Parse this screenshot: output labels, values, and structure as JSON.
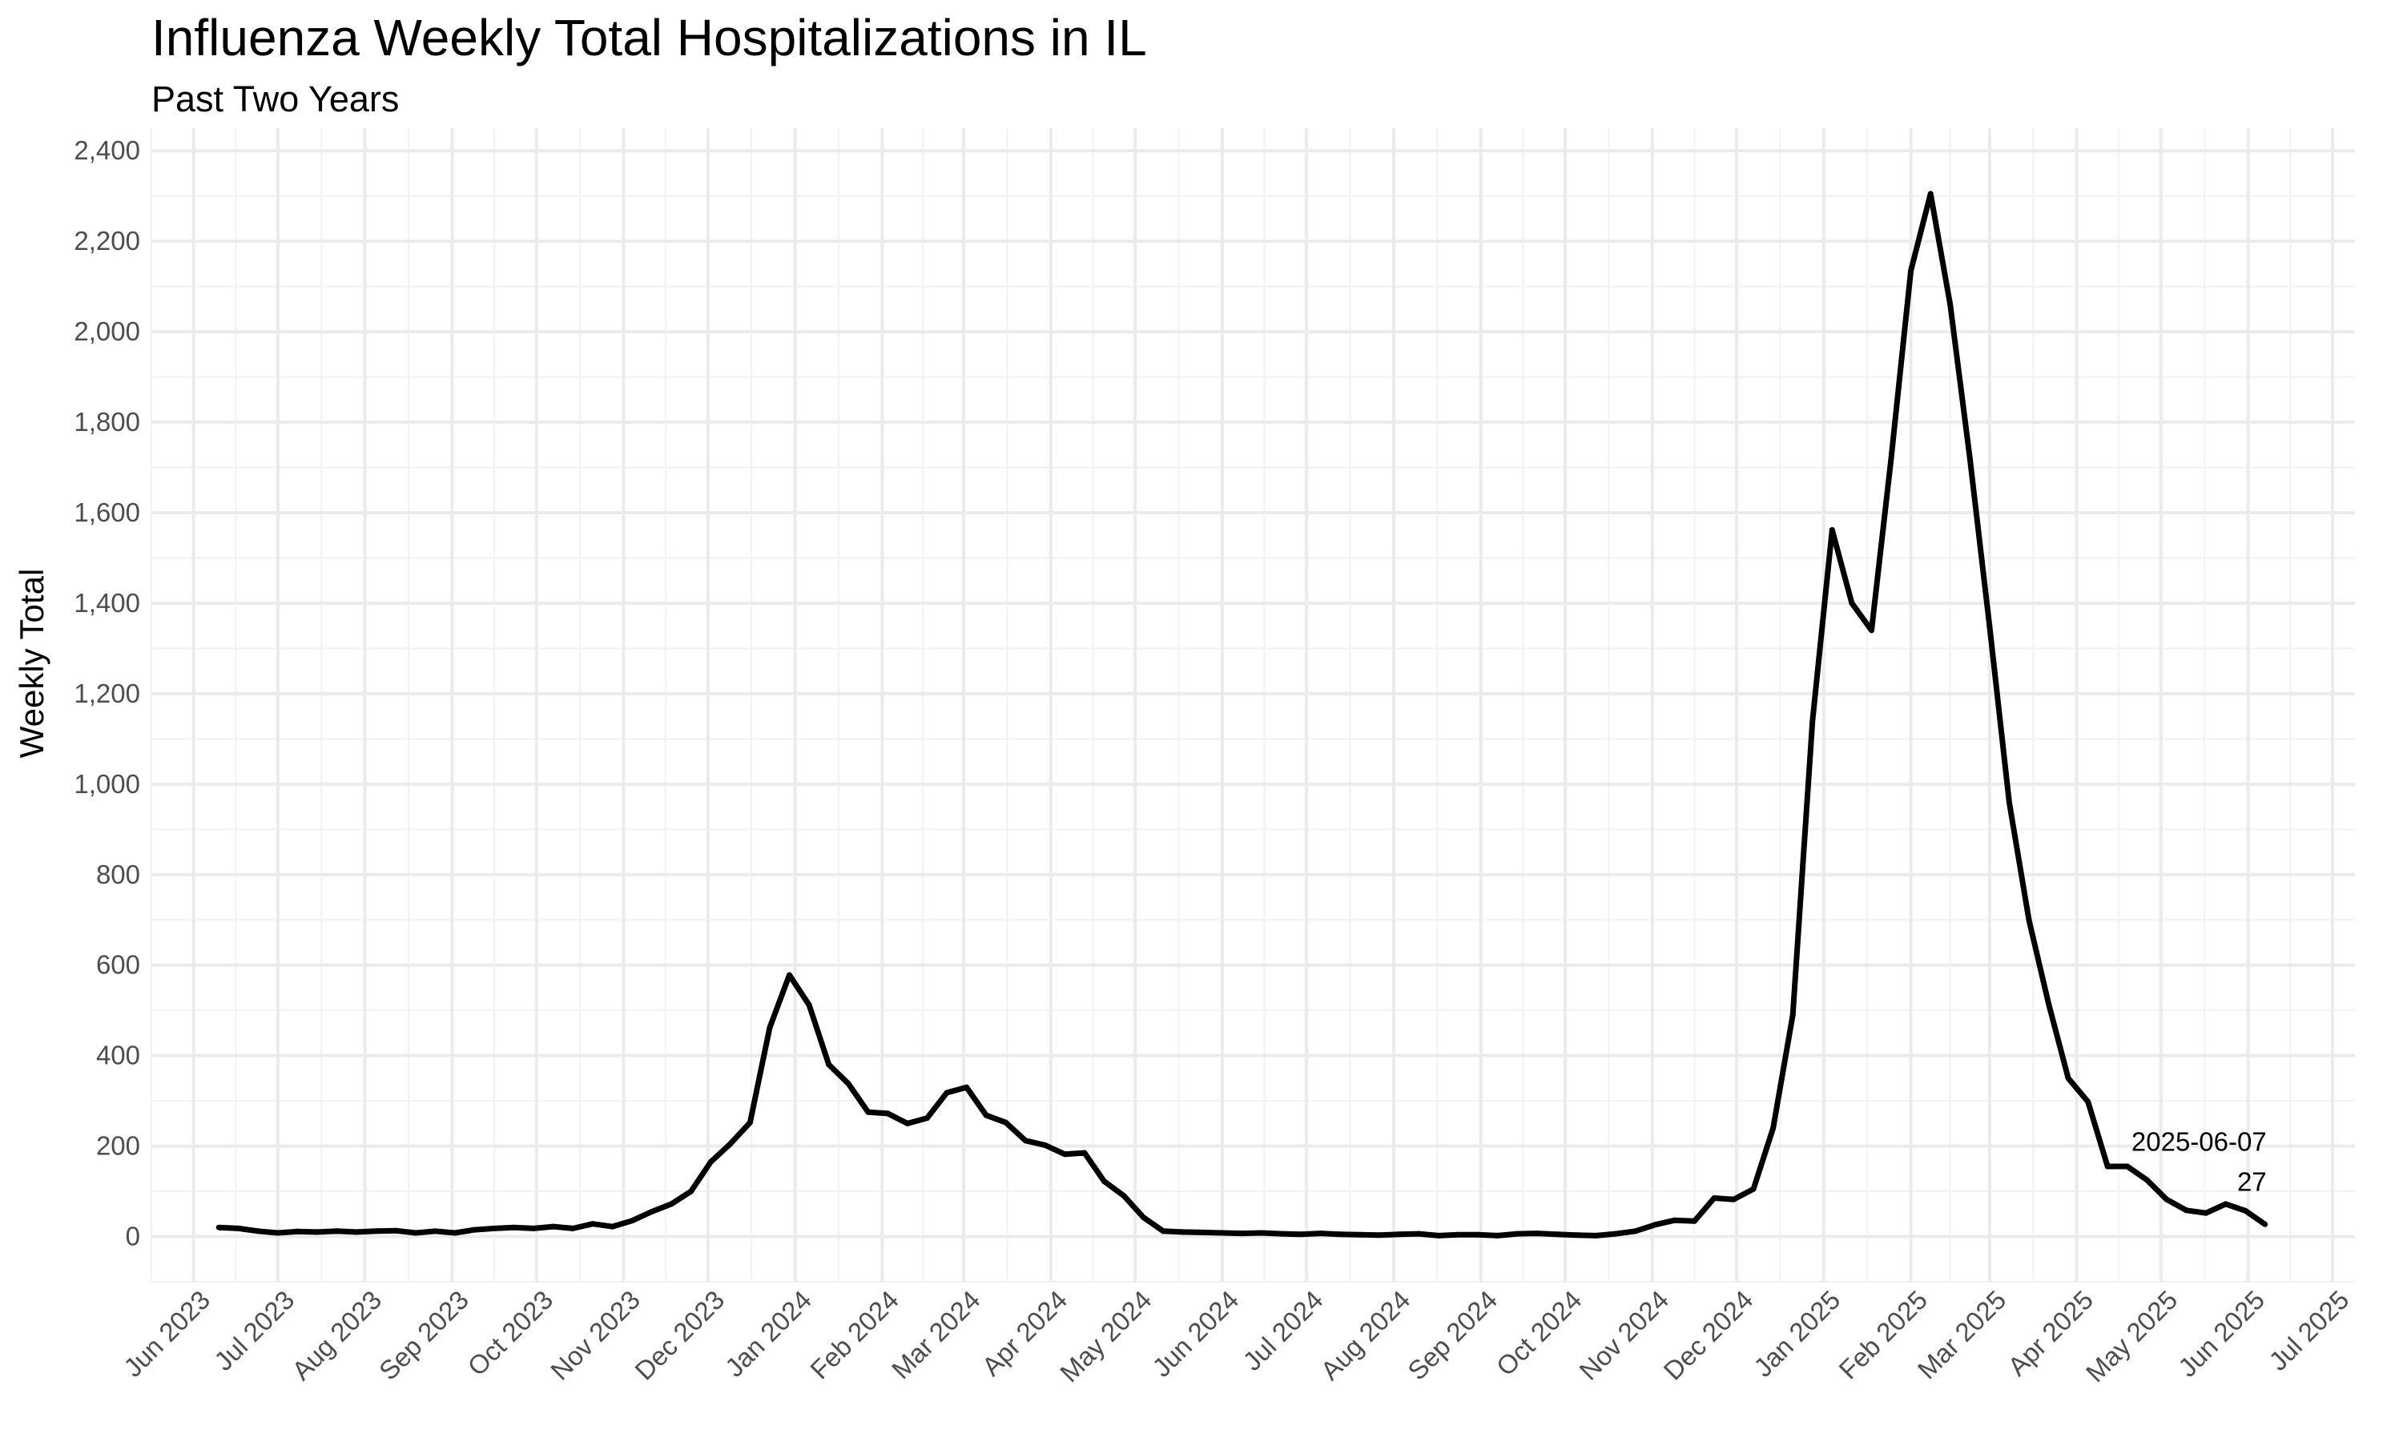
{
  "chart_data": {
    "type": "line",
    "title": "Influenza Weekly Total Hospitalizations in IL",
    "subtitle": "Past Two Years",
    "xlabel": "",
    "ylabel": "Weekly Total",
    "ylim": [
      -100,
      2450
    ],
    "xlim": [
      "2023-05-17",
      "2025-07-09"
    ],
    "grid": true,
    "legend": "none",
    "line_color": "#000000",
    "y_ticks": [
      {
        "value": 0,
        "label": "0"
      },
      {
        "value": 200,
        "label": "200"
      },
      {
        "value": 400,
        "label": "400"
      },
      {
        "value": 600,
        "label": "600"
      },
      {
        "value": 800,
        "label": "800"
      },
      {
        "value": 1000,
        "label": "1,000"
      },
      {
        "value": 1200,
        "label": "1,200"
      },
      {
        "value": 1400,
        "label": "1,400"
      },
      {
        "value": 1600,
        "label": "1,600"
      },
      {
        "value": 1800,
        "label": "1,800"
      },
      {
        "value": 2000,
        "label": "2,000"
      },
      {
        "value": 2200,
        "label": "2,200"
      },
      {
        "value": 2400,
        "label": "2,400"
      }
    ],
    "x_ticks": [
      {
        "date": "2023-06-01",
        "label": "Jun 2023"
      },
      {
        "date": "2023-07-01",
        "label": "Jul 2023"
      },
      {
        "date": "2023-08-01",
        "label": "Aug 2023"
      },
      {
        "date": "2023-09-01",
        "label": "Sep 2023"
      },
      {
        "date": "2023-10-01",
        "label": "Oct 2023"
      },
      {
        "date": "2023-11-01",
        "label": "Nov 2023"
      },
      {
        "date": "2023-12-01",
        "label": "Dec 2023"
      },
      {
        "date": "2024-01-01",
        "label": "Jan 2024"
      },
      {
        "date": "2024-02-01",
        "label": "Feb 2024"
      },
      {
        "date": "2024-03-01",
        "label": "Mar 2024"
      },
      {
        "date": "2024-04-01",
        "label": "Apr 2024"
      },
      {
        "date": "2024-05-01",
        "label": "May 2024"
      },
      {
        "date": "2024-06-01",
        "label": "Jun 2024"
      },
      {
        "date": "2024-07-01",
        "label": "Jul 2024"
      },
      {
        "date": "2024-08-01",
        "label": "Aug 2024"
      },
      {
        "date": "2024-09-01",
        "label": "Sep 2024"
      },
      {
        "date": "2024-10-01",
        "label": "Oct 2024"
      },
      {
        "date": "2024-11-01",
        "label": "Nov 2024"
      },
      {
        "date": "2024-12-01",
        "label": "Dec 2024"
      },
      {
        "date": "2025-01-01",
        "label": "Jan 2025"
      },
      {
        "date": "2025-02-01",
        "label": "Feb 2025"
      },
      {
        "date": "2025-03-01",
        "label": "Mar 2025"
      },
      {
        "date": "2025-04-01",
        "label": "Apr 2025"
      },
      {
        "date": "2025-05-01",
        "label": "May 2025"
      },
      {
        "date": "2025-06-01",
        "label": "Jun 2025"
      },
      {
        "date": "2025-07-01",
        "label": "Jul 2025"
      }
    ],
    "series": [
      {
        "x": [
          "2023-06-10",
          "2023-06-17",
          "2023-06-24",
          "2023-07-01",
          "2023-07-08",
          "2023-07-15",
          "2023-07-22",
          "2023-07-29",
          "2023-08-05",
          "2023-08-12",
          "2023-08-19",
          "2023-08-26",
          "2023-09-02",
          "2023-09-09",
          "2023-09-16",
          "2023-09-23",
          "2023-09-30",
          "2023-10-07",
          "2023-10-14",
          "2023-10-21",
          "2023-10-28",
          "2023-11-04",
          "2023-11-11",
          "2023-11-18",
          "2023-11-25",
          "2023-12-02",
          "2023-12-09",
          "2023-12-16",
          "2023-12-23",
          "2023-12-30",
          "2024-01-06",
          "2024-01-13",
          "2024-01-20",
          "2024-01-27",
          "2024-02-03",
          "2024-02-10",
          "2024-02-17",
          "2024-02-24",
          "2024-03-02",
          "2024-03-09",
          "2024-03-16",
          "2024-03-23",
          "2024-03-30",
          "2024-04-06",
          "2024-04-13",
          "2024-04-20",
          "2024-04-27",
          "2024-05-04",
          "2024-05-11",
          "2024-05-18",
          "2024-05-25",
          "2024-06-01",
          "2024-06-08",
          "2024-06-15",
          "2024-06-22",
          "2024-06-29",
          "2024-07-06",
          "2024-07-13",
          "2024-07-20",
          "2024-07-27",
          "2024-08-03",
          "2024-08-10",
          "2024-08-17",
          "2024-08-24",
          "2024-08-31",
          "2024-09-07",
          "2024-09-14",
          "2024-09-21",
          "2024-09-28",
          "2024-10-05",
          "2024-10-12",
          "2024-10-19",
          "2024-10-26",
          "2024-11-02",
          "2024-11-09",
          "2024-11-16",
          "2024-11-23",
          "2024-11-30",
          "2024-12-07",
          "2024-12-14",
          "2024-12-21",
          "2024-12-28",
          "2025-01-04",
          "2025-01-11",
          "2025-01-18",
          "2025-01-25",
          "2025-02-01",
          "2025-02-08",
          "2025-02-15",
          "2025-02-22",
          "2025-03-01",
          "2025-03-08",
          "2025-03-15",
          "2025-03-22",
          "2025-03-29",
          "2025-04-05",
          "2025-04-12",
          "2025-04-19",
          "2025-04-26",
          "2025-05-03",
          "2025-05-10",
          "2025-05-17",
          "2025-05-24",
          "2025-05-31",
          "2025-06-07"
        ],
        "y": [
          20,
          18,
          12,
          8,
          11,
          10,
          12,
          10,
          12,
          13,
          8,
          12,
          8,
          15,
          18,
          20,
          18,
          22,
          18,
          28,
          22,
          35,
          55,
          72,
          100,
          165,
          205,
          252,
          462,
          578,
          512,
          380,
          338,
          275,
          272,
          250,
          262,
          318,
          330,
          268,
          252,
          212,
          202,
          182,
          185,
          122,
          90,
          42,
          12,
          10,
          9,
          8,
          7,
          8,
          6,
          5,
          7,
          5,
          4,
          3,
          5,
          6,
          2,
          4,
          4,
          2,
          6,
          7,
          5,
          3,
          2,
          6,
          12,
          26,
          36,
          34,
          85,
          82,
          105,
          240,
          490,
          1140,
          1562,
          1400,
          1340,
          1720,
          2135,
          2305,
          2060,
          1720,
          1350,
          960,
          700,
          515,
          350,
          298,
          155,
          155,
          125,
          82,
          58,
          52,
          72,
          57,
          27
        ]
      }
    ],
    "annotations": [
      {
        "text": "2025-06-07",
        "x": "2025-06-07",
        "y": 27,
        "position": "above-left",
        "line": 1
      },
      {
        "text": "27",
        "x": "2025-06-07",
        "y": 27,
        "position": "above-left",
        "line": 2
      }
    ]
  }
}
